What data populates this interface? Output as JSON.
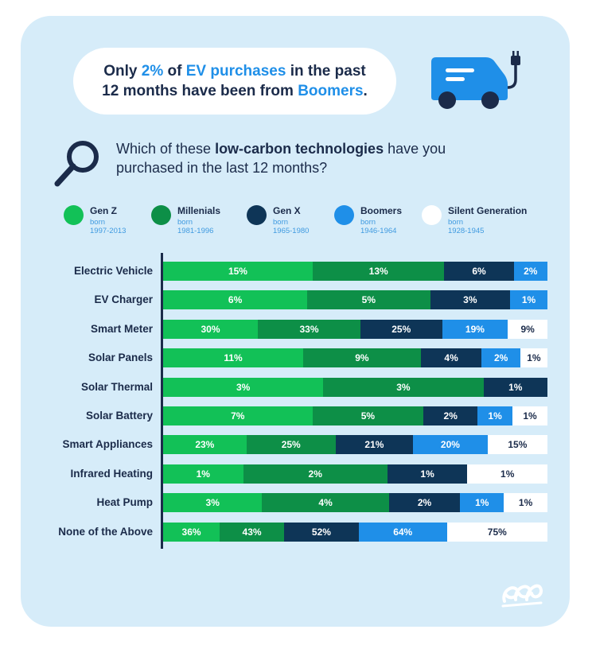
{
  "headline": {
    "line1_pre": "Only ",
    "line1_pct": "2%",
    "line1_mid": " of ",
    "line1_hl": "EV purchases",
    "line1_post": " in the past",
    "line2_pre": "12 months have been from ",
    "line2_hl": "Boomers",
    "line2_post": "."
  },
  "question": {
    "pre": "Which of these ",
    "bold": "low-carbon technologies",
    "post": " have you purchased in the last 12 months?"
  },
  "icons": {
    "van": "electric-van-icon",
    "search": "magnifier-icon",
    "logo": "brand-logo-icon"
  },
  "colors": {
    "background": "#d6ecf9",
    "text": "#1b2b4a",
    "accent": "#1f8fe8"
  },
  "legend": [
    {
      "name": "Gen Z",
      "born_label": "born",
      "years": "1997-2013",
      "color": "#12c157"
    },
    {
      "name": "Millenials",
      "born_label": "born",
      "years": "1981-1996",
      "color": "#0d8f47"
    },
    {
      "name": "Gen X",
      "born_label": "born",
      "years": "1965-1980",
      "color": "#0e3557"
    },
    {
      "name": "Boomers",
      "born_label": "born",
      "years": "1946-1964",
      "color": "#1f8fe8"
    },
    {
      "name": "Silent Generation",
      "born_label": "born",
      "years": "1928-1945",
      "color": "#ffffff"
    }
  ],
  "chart_data": {
    "type": "bar",
    "orientation": "horizontal",
    "stacked": true,
    "categories": [
      "Electric Vehicle",
      "EV Charger",
      "Smart Meter",
      "Solar Panels",
      "Solar Thermal",
      "Solar Battery",
      "Smart Appliances",
      "Infrared Heating",
      "Heat Pump",
      "None of the Above"
    ],
    "series": [
      {
        "name": "Gen Z",
        "values": [
          15,
          6,
          30,
          11,
          3,
          7,
          23,
          1,
          3,
          36
        ],
        "labels": [
          "15%",
          "6%",
          "30%",
          "11%",
          "3%",
          "7%",
          "23%",
          "1%",
          "3%",
          "36%"
        ]
      },
      {
        "name": "Millenials",
        "values": [
          13,
          5,
          33,
          9,
          3,
          5,
          25,
          2,
          4,
          43
        ],
        "labels": [
          "13%",
          "5%",
          "33%",
          "9%",
          "3%",
          "5%",
          "25%",
          "2%",
          "4%",
          "43%"
        ]
      },
      {
        "name": "Gen X",
        "values": [
          6,
          3,
          25,
          4,
          1,
          2,
          21,
          1,
          2,
          52
        ],
        "labels": [
          "6%",
          "3%",
          "25%",
          "4%",
          "1%",
          "2%",
          "21%",
          "1%",
          "2%",
          "52%"
        ]
      },
      {
        "name": "Boomers",
        "values": [
          2,
          1,
          19,
          2,
          null,
          1,
          20,
          null,
          1,
          64
        ],
        "labels": [
          "2%",
          "1%",
          "19%",
          "2%",
          null,
          "1%",
          "20%",
          null,
          "1%",
          "64%"
        ]
      },
      {
        "name": "Silent Generation",
        "values": [
          null,
          null,
          9,
          1,
          null,
          1,
          15,
          1,
          1,
          75
        ],
        "labels": [
          null,
          null,
          "9%",
          "1%",
          null,
          "1%",
          "15%",
          "1%",
          "1%",
          "75%"
        ]
      }
    ],
    "grid": false,
    "legend_position": "top"
  }
}
